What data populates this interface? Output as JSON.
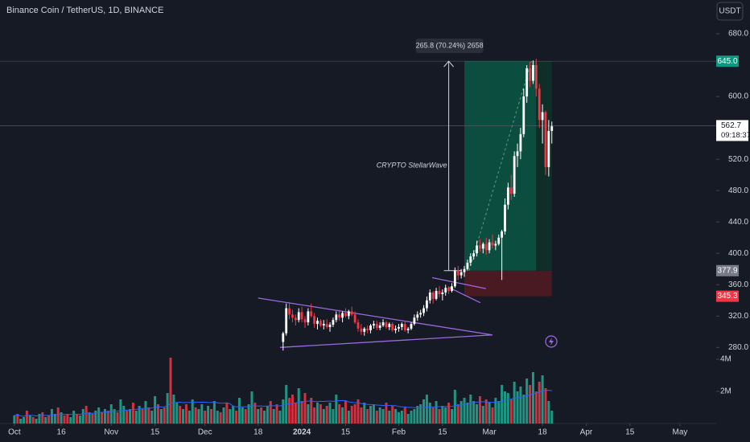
{
  "chart_data": {
    "type": "candlestick",
    "title": "Binance Coin / TetherUS, 1D, BINANCE",
    "currency": "USDT",
    "annotation": "CRYPTO StellarWave",
    "measure": "265.8 (70.24%) 2658",
    "ylim": [
      183,
      723
    ],
    "yticks": [
      {
        "value": 680,
        "label": "680.0"
      },
      {
        "value": 600,
        "label": "600.0"
      },
      {
        "value": 520,
        "label": "520.0"
      },
      {
        "value": 480,
        "label": "480.0"
      },
      {
        "value": 440,
        "label": "440.0"
      },
      {
        "value": 400,
        "label": "400.0"
      },
      {
        "value": 360,
        "label": "360.0"
      },
      {
        "value": 320,
        "label": "320.0"
      },
      {
        "value": 280,
        "label": "280.0"
      }
    ],
    "xlim": [
      -4.6,
      224.6
    ],
    "xticks": [
      {
        "value": 0,
        "label": "Oct"
      },
      {
        "value": 15,
        "label": "16"
      },
      {
        "value": 31,
        "label": "Nov"
      },
      {
        "value": 45,
        "label": "15"
      },
      {
        "value": 61,
        "label": "Dec"
      },
      {
        "value": 78,
        "label": "18"
      },
      {
        "value": 92,
        "label": "2024"
      },
      {
        "value": 106,
        "label": "15"
      },
      {
        "value": 123,
        "label": "Feb"
      },
      {
        "value": 137,
        "label": "15"
      },
      {
        "value": 152,
        "label": "Mar"
      },
      {
        "value": 169,
        "label": "18"
      },
      {
        "value": 183,
        "label": "Apr"
      },
      {
        "value": 197,
        "label": "15"
      },
      {
        "value": 213,
        "label": "May"
      }
    ],
    "up_color": "#ffffff",
    "down_color": "#f23645",
    "x": [
      86,
      87,
      88,
      89,
      90,
      91,
      92,
      93,
      94,
      95,
      96,
      97,
      98,
      99,
      100,
      101,
      102,
      103,
      104,
      105,
      106,
      107,
      108,
      109,
      110,
      111,
      112,
      113,
      114,
      115,
      116,
      117,
      118,
      119,
      120,
      121,
      122,
      123,
      124,
      125,
      126,
      127,
      128,
      129,
      130,
      131,
      132,
      133,
      134,
      135,
      136,
      137,
      138,
      139,
      140,
      141,
      142,
      143,
      144,
      145,
      146,
      147,
      148,
      149,
      150,
      151,
      152,
      153,
      154,
      155,
      156,
      157,
      158,
      159,
      160,
      161,
      162,
      163,
      164,
      165,
      166,
      167,
      168,
      169,
      170,
      171,
      172
    ],
    "open": [
      287,
      298,
      330,
      322,
      318,
      315,
      325,
      316,
      312,
      326,
      320,
      310,
      314,
      308,
      310,
      306,
      309,
      315,
      322,
      318,
      324,
      320,
      326,
      322,
      312,
      304,
      300,
      304,
      302,
      308,
      310,
      305,
      308,
      312,
      306,
      310,
      302,
      304,
      306,
      310,
      302,
      304,
      310,
      318,
      322,
      324,
      330,
      340,
      350,
      342,
      352,
      348,
      350,
      356,
      352,
      358,
      378,
      372,
      376,
      380,
      388,
      396,
      400,
      410,
      406,
      412,
      404,
      414,
      410,
      412,
      420,
      428,
      462,
      484,
      476,
      524,
      530,
      552,
      600,
      636,
      620,
      640,
      610,
      570,
      580,
      510,
      556
    ],
    "high": [
      300,
      336,
      338,
      328,
      322,
      330,
      332,
      320,
      330,
      336,
      324,
      318,
      316,
      315,
      316,
      312,
      318,
      326,
      328,
      326,
      330,
      328,
      332,
      326,
      316,
      310,
      306,
      308,
      310,
      314,
      314,
      312,
      316,
      314,
      312,
      312,
      308,
      310,
      312,
      314,
      306,
      312,
      322,
      326,
      328,
      334,
      345,
      354,
      352,
      356,
      358,
      354,
      360,
      358,
      362,
      382,
      384,
      380,
      384,
      392,
      400,
      404,
      416,
      418,
      414,
      420,
      418,
      424,
      416,
      424,
      430,
      470,
      490,
      500,
      530,
      540,
      560,
      610,
      640,
      644,
      646,
      648,
      616,
      590,
      582,
      570,
      568
    ],
    "low": [
      276,
      295,
      316,
      312,
      308,
      312,
      312,
      305,
      308,
      318,
      305,
      303,
      306,
      303,
      304,
      300,
      306,
      312,
      314,
      312,
      318,
      316,
      320,
      310,
      300,
      296,
      295,
      298,
      298,
      304,
      302,
      302,
      306,
      304,
      302,
      300,
      298,
      300,
      302,
      300,
      298,
      302,
      308,
      314,
      318,
      320,
      326,
      336,
      336,
      340,
      344,
      340,
      346,
      348,
      350,
      356,
      366,
      368,
      370,
      378,
      384,
      392,
      396,
      402,
      400,
      398,
      400,
      406,
      404,
      410,
      366,
      424,
      456,
      468,
      472,
      510,
      520,
      548,
      592,
      612,
      616,
      600,
      560,
      540,
      500,
      498,
      540
    ],
    "close": [
      298,
      330,
      322,
      318,
      315,
      325,
      316,
      312,
      326,
      320,
      310,
      314,
      308,
      310,
      306,
      309,
      315,
      322,
      318,
      324,
      320,
      326,
      322,
      312,
      304,
      300,
      304,
      302,
      308,
      310,
      305,
      308,
      312,
      306,
      310,
      302,
      304,
      306,
      310,
      302,
      304,
      310,
      318,
      322,
      324,
      330,
      340,
      350,
      342,
      352,
      348,
      350,
      356,
      352,
      358,
      378,
      372,
      376,
      380,
      388,
      396,
      400,
      410,
      406,
      412,
      404,
      414,
      410,
      412,
      420,
      428,
      462,
      484,
      476,
      524,
      530,
      552,
      600,
      636,
      620,
      640,
      610,
      570,
      580,
      510,
      556,
      562
    ],
    "volume": {
      "yticks": [
        {
          "value": 4,
          "label": "4M"
        },
        {
          "value": 2,
          "label": "2M"
        }
      ],
      "ylim": [
        0,
        26.35
      ],
      "up_color": "#22ab94",
      "down_color": "#f23645",
      "values": [
        0.5,
        0.6,
        0.3,
        0.4,
        0.8,
        0.5,
        0.4,
        0.3,
        0.6,
        0.7,
        0.4,
        0.5,
        0.9,
        0.6,
        1.0,
        0.7,
        0.5,
        0.6,
        0.4,
        0.8,
        0.6,
        0.5,
        0.9,
        1.1,
        0.7,
        0.6,
        0.8,
        1.0,
        0.7,
        0.9,
        0.8,
        1.2,
        0.9,
        0.7,
        1.5,
        1.1,
        0.8,
        0.9,
        1.3,
        0.8,
        1.1,
        0.9,
        1.4,
        1.0,
        0.8,
        1.7,
        1.2,
        0.9,
        1.0,
        1.9,
        4.1,
        1.8,
        1.3,
        1.1,
        0.9,
        1.2,
        0.8,
        1.5,
        1.0,
        0.9,
        1.2,
        0.8,
        1.1,
        0.9,
        1.4,
        0.8,
        0.7,
        1.0,
        1.3,
        0.9,
        1.1,
        0.8,
        1.6,
        1.0,
        0.9,
        1.2,
        2.0,
        1.3,
        0.9,
        1.0,
        0.8,
        1.1,
        1.4,
        0.9,
        1.2,
        0.8,
        1.5,
        2.4,
        1.6,
        1.8,
        1.3,
        2.2,
        1.4,
        1.9,
        1.2,
        1.6,
        1.0,
        1.3,
        1.2,
        0.9,
        1.1,
        1.3,
        0.9,
        1.8,
        1.2,
        1.0,
        1.4,
        0.8,
        1.1,
        1.2,
        1.5,
        1.0,
        1.3,
        0.9,
        1.1,
        1.2,
        0.8,
        1.0,
        0.9,
        1.3,
        0.8,
        1.1,
        0.9,
        0.7,
        0.8,
        1.0,
        0.6,
        0.8,
        0.9,
        1.1,
        1.2,
        1.5,
        1.8,
        1.3,
        1.0,
        1.4,
        0.9,
        1.1,
        1.0,
        1.3,
        0.9,
        2.1,
        1.2,
        1.4,
        1.6,
        1.3,
        1.8,
        1.4,
        1.2,
        1.7,
        1.1,
        1.5,
        1.3,
        1.0,
        1.6,
        1.4,
        2.4,
        2.0,
        1.9,
        1.5,
        2.6,
        2.0,
        2.3,
        1.8,
        2.8,
        2.4,
        3.2,
        2.0,
        2.6,
        3.0,
        2.2,
        1.4,
        0.8
      ],
      "up": [
        1,
        0,
        1,
        1,
        0,
        1,
        0,
        1,
        1,
        0,
        1,
        0,
        1,
        1,
        0,
        1,
        0,
        0,
        1,
        1,
        0,
        1,
        1,
        0,
        1,
        0,
        1,
        1,
        0,
        1,
        0,
        1,
        1,
        0,
        1,
        1,
        0,
        1,
        0,
        1,
        1,
        0,
        1,
        0,
        1,
        1,
        0,
        1,
        0,
        1,
        0,
        1,
        1,
        0,
        1,
        0,
        1,
        1,
        0,
        1,
        1,
        0,
        1,
        0,
        1,
        1,
        0,
        1,
        0,
        1,
        1,
        0,
        1,
        1,
        0,
        1,
        1,
        0,
        1,
        0,
        1,
        1,
        0,
        1,
        0,
        1,
        1,
        1,
        0,
        0,
        0,
        1,
        0,
        0,
        1,
        0,
        0,
        1,
        0,
        1,
        0,
        1,
        1,
        1,
        0,
        1,
        0,
        1,
        0,
        0,
        0,
        0,
        1,
        0,
        1,
        1,
        0,
        1,
        1,
        0,
        1,
        0,
        1,
        1,
        1,
        0,
        1,
        1,
        1,
        1,
        1,
        1,
        1,
        1,
        0,
        1,
        0,
        1,
        1,
        0,
        1,
        1,
        0,
        1,
        1,
        1,
        1,
        1,
        1,
        0,
        1,
        0,
        1,
        0,
        1,
        1,
        1,
        1,
        1,
        0,
        1,
        1,
        1,
        1,
        1,
        0,
        1,
        0,
        0,
        1,
        0,
        1,
        1
      ]
    },
    "position": {
      "start": 144,
      "split": 167,
      "end": 172,
      "entry": {
        "value": 377.9,
        "label": "377.9"
      },
      "target": {
        "value": 645.0,
        "label": "645.0"
      },
      "stop": {
        "value": 345.3,
        "label": "345.3"
      }
    },
    "last_price": {
      "value": 562.7,
      "label": "562.7"
    },
    "countdown": "09:18:37",
    "measure_x": 139,
    "trendlines": [
      [
        [
          78,
          343
        ],
        [
          153,
          296
        ]
      ],
      [
        [
          85,
          280
        ],
        [
          153,
          296
        ]
      ],
      [
        [
          133.7,
          369
        ],
        [
          150.9,
          355
        ]
      ],
      [
        [
          138.8,
          357
        ],
        [
          149.1,
          337
        ]
      ]
    ]
  }
}
